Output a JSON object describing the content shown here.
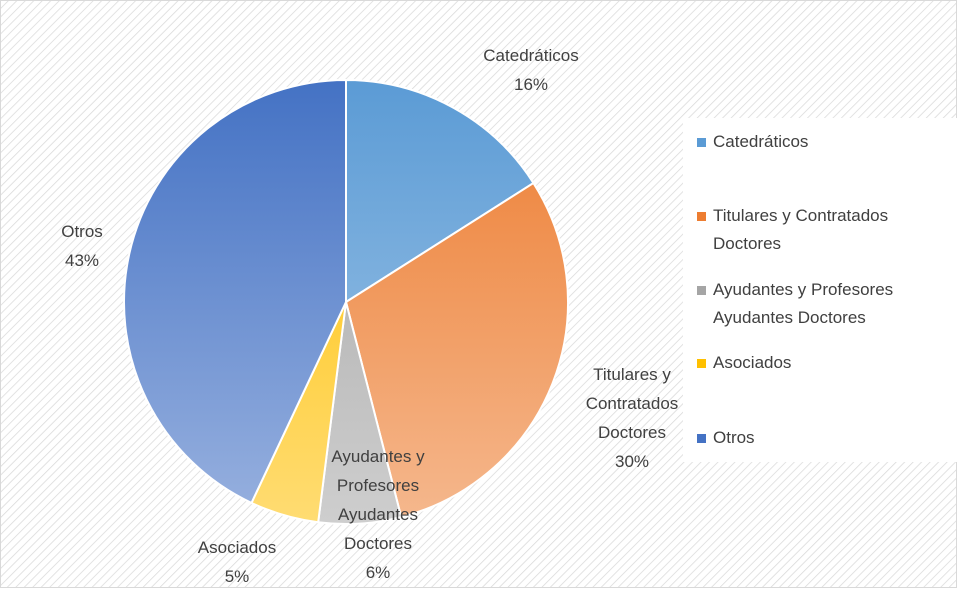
{
  "chart_data": {
    "type": "pie",
    "categories": [
      "Catedráticos",
      "Titulares y Contratados Doctores",
      "Ayudantes y Profesores Ayudantes Doctores",
      "Asociados",
      "Otros"
    ],
    "values": [
      16,
      30,
      6,
      5,
      43
    ],
    "value_labels": [
      "16%",
      "30%",
      "6%",
      "5%",
      "43%"
    ],
    "colors": [
      "#5b9bd5",
      "#ed7d31",
      "#a5a5a5",
      "#ffc000",
      "#4472c4"
    ],
    "legend": "right"
  }
}
